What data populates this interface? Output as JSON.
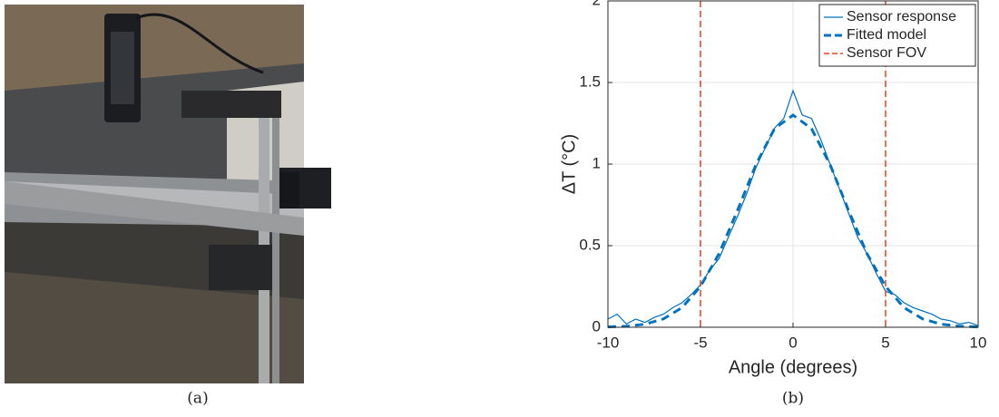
{
  "captions": [
    "(a)",
    "(b)"
  ],
  "chart_data": {
    "type": "line",
    "xlabel": "Angle (degrees)",
    "ylabel": "ΔT (°C)",
    "xlim": [
      -10,
      10
    ],
    "ylim": [
      0,
      2
    ],
    "xticks": [
      -10,
      -5,
      0,
      5,
      10
    ],
    "yticks": [
      0,
      0.5,
      1,
      1.5,
      2
    ],
    "grid": true,
    "legend": "upper right",
    "series": [
      {
        "name": "Sensor response",
        "color": "#0072bd",
        "style": "solid",
        "x": [
          -10,
          -9.5,
          -9,
          -8.5,
          -8,
          -7.5,
          -7,
          -6.5,
          -6,
          -5.5,
          -5,
          -4.5,
          -4,
          -3.5,
          -3,
          -2.5,
          -2,
          -1.5,
          -1,
          -0.5,
          0,
          0.5,
          1,
          1.5,
          2,
          2.5,
          3,
          3.5,
          4,
          4.5,
          5,
          5.5,
          6,
          6.5,
          7,
          7.5,
          8,
          8.5,
          9,
          9.5,
          10
        ],
        "values": [
          0.05,
          0.08,
          0.02,
          0.05,
          0.03,
          0.06,
          0.08,
          0.12,
          0.15,
          0.2,
          0.26,
          0.35,
          0.42,
          0.55,
          0.68,
          0.82,
          0.98,
          1.1,
          1.22,
          1.28,
          1.45,
          1.3,
          1.28,
          1.15,
          1.0,
          0.85,
          0.7,
          0.55,
          0.45,
          0.33,
          0.22,
          0.2,
          0.15,
          0.12,
          0.1,
          0.08,
          0.05,
          0.04,
          0.02,
          0.03,
          0.01
        ]
      },
      {
        "name": "Fitted model",
        "color": "#0072bd",
        "style": "dashed",
        "x": [
          -10,
          -9,
          -8,
          -7,
          -6,
          -5,
          -4,
          -3,
          -2,
          -1,
          0,
          1,
          2,
          3,
          4,
          5,
          6,
          7,
          8,
          9,
          10
        ],
        "values": [
          0.002,
          0.006,
          0.019,
          0.051,
          0.12,
          0.25,
          0.45,
          0.716,
          0.997,
          1.217,
          1.3,
          1.217,
          0.997,
          0.716,
          0.45,
          0.25,
          0.12,
          0.051,
          0.019,
          0.006,
          0.002
        ]
      },
      {
        "name": "Sensor FOV",
        "color": "#e8401c",
        "style": "vline",
        "x": [
          -5,
          5
        ]
      }
    ]
  }
}
